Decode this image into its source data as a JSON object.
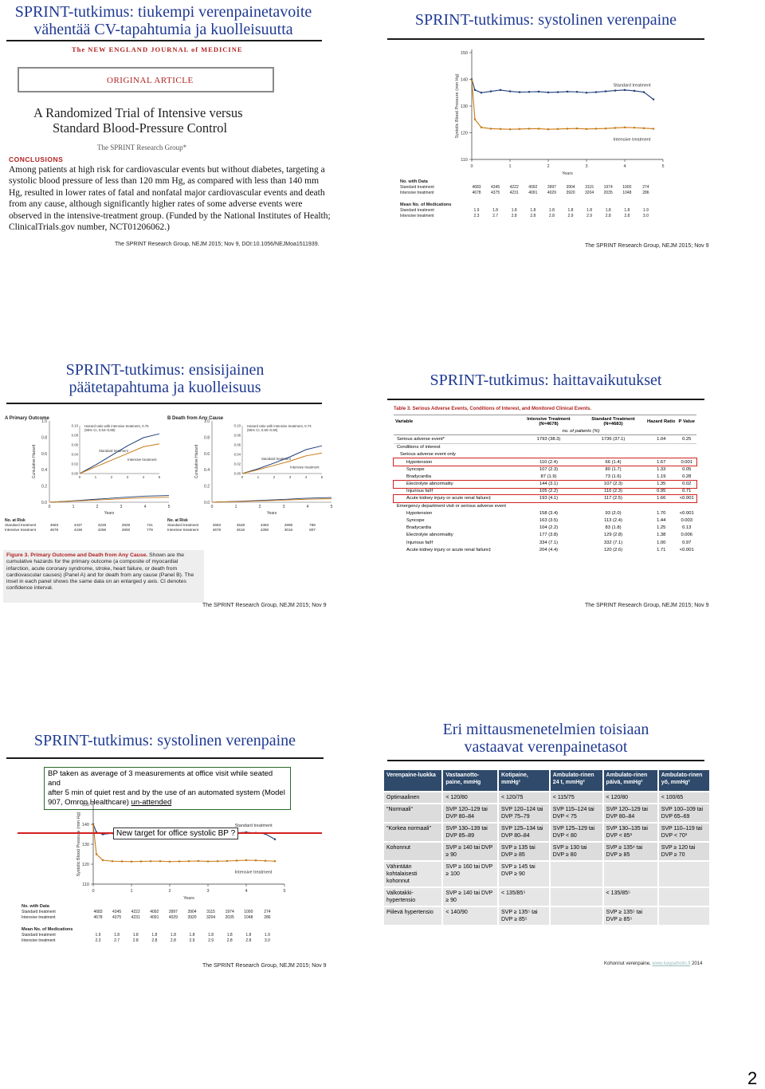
{
  "slide1": {
    "title_line1": "SPRINT-tutkimus: tiukempi verenpainetavoite",
    "title_line2": "vähentää CV-tapahtumia ja kuolleisuutta",
    "journal": "The NEW ENGLAND JOURNAL of MEDICINE",
    "article_type": "ORIGINAL ARTICLE",
    "article_title_line1": "A Randomized Trial of Intensive versus",
    "article_title_line2": "Standard Blood-Pressure Control",
    "authors": "The SPRINT Research Group*",
    "conclusions_heading": "CONCLUSIONS",
    "conclusions_text": "Among patients at high risk for cardiovascular events but without diabetes, targeting a systolic blood pressure of less than 120 mm Hg, as compared with less than 140 mm Hg, resulted in lower rates of fatal and nonfatal major cardiovascular events and death from any cause, although significantly higher rates of some adverse events were observed in the intensive-treatment group. (Funded by the National Institutes of Health; ClinicalTrials.gov number, NCT01206062.)",
    "citation": "The SPRINT Research Group, NEJM 2015; Nov 9, DOI:10.1056/NEJMoa1511939."
  },
  "slide2": {
    "title": "SPRINT-tutkimus: systolinen verenpaine",
    "citation": "The SPRINT Research Group, NEJM 2015; Nov 9"
  },
  "slide3": {
    "title_line1": "SPRINT-tutkimus: ensisijainen",
    "title_line2": "päätetapahtuma ja kuolleisuus",
    "panel_a": "A  Primary Outcome",
    "panel_b": "B  Death from Any Cause",
    "hr_a": "Hazard ratio with intensive treatment, 0.75 (95% CI, 0.64–0.89)",
    "hr_b": "Hazard ratio with intensive treatment, 0.73 (95% CI, 0.60–0.90)",
    "ylabel": "Cumulative Hazard",
    "xlabel": "Years",
    "standard": "Standard treatment",
    "intensive": "Intensive treatment",
    "at_risk": "No. at Risk",
    "risk_a_standard": [
      "4683",
      "4437",
      "4228",
      "2829",
      "721"
    ],
    "risk_a_intensive": [
      "4678",
      "4436",
      "4256",
      "2900",
      "779"
    ],
    "risk_b_standard": [
      "4683",
      "4528",
      "4383",
      "2998",
      "789"
    ],
    "risk_b_intensive": [
      "4678",
      "4516",
      "4390",
      "3016",
      "807"
    ],
    "figure_caption_bold": "Figure 3. Primary Outcome and Death from Any Cause.",
    "figure_caption": "Shown are the cumulative hazards for the primary outcome (a composite of myocardial infarction, acute coronary syndrome, stroke, heart failure, or death from cardiovascular causes) (Panel A) and for death from any cause (Panel B). The inset in each panel shows the same data on an enlarged y axis. CI denotes confidence interval.",
    "citation": "The SPRINT Research Group, NEJM 2015; Nov 9"
  },
  "slide4": {
    "title": "SPRINT-tutkimus: haittavaikutukset",
    "table_title": "Table 3. Serious Adverse Events, Conditions of Interest, and Monitored Clinical Events.",
    "col_variable": "Variable",
    "col_intensive": "Intensive Treatment (N=4678)",
    "col_standard": "Standard Treatment (N=4683)",
    "col_hr": "Hazard Ratio",
    "col_p": "P Value",
    "subheader": "no. of patients (%)",
    "rows": [
      {
        "v": "Serious adverse event*",
        "i": "1793 (38.3)",
        "s": "1736 (37.1)",
        "hr": "1.04",
        "p": "0.25"
      },
      {
        "v": "Conditions of interest",
        "i": "",
        "s": "",
        "hr": "",
        "p": ""
      },
      {
        "v": "Serious adverse event only",
        "i": "",
        "s": "",
        "hr": "",
        "p": ""
      },
      {
        "v": "Hypotension",
        "i": "110 (2.4)",
        "s": "66 (1.4)",
        "hr": "1.67",
        "p": "0.001"
      },
      {
        "v": "Syncope",
        "i": "107 (2.3)",
        "s": "80 (1.7)",
        "hr": "1.33",
        "p": "0.05"
      },
      {
        "v": "Bradycardia",
        "i": "87 (1.9)",
        "s": "73 (1.6)",
        "hr": "1.19",
        "p": "0.28"
      },
      {
        "v": "Electrolyte abnormality",
        "i": "144 (3.1)",
        "s": "107 (2.3)",
        "hr": "1.35",
        "p": "0.02"
      },
      {
        "v": "Injurious fall†",
        "i": "105 (2.2)",
        "s": "110 (2.3)",
        "hr": "0.95",
        "p": "0.71"
      },
      {
        "v": "Acute kidney injury or acute renal failure‡",
        "i": "193 (4.1)",
        "s": "117 (2.5)",
        "hr": "1.66",
        "p": "<0.001"
      },
      {
        "v": "Emergency department visit or serious adverse event",
        "i": "",
        "s": "",
        "hr": "",
        "p": ""
      },
      {
        "v": "Hypotension",
        "i": "158 (3.4)",
        "s": "93 (2.0)",
        "hr": "1.70",
        "p": "<0.001"
      },
      {
        "v": "Syncope",
        "i": "163 (3.5)",
        "s": "113 (2.4)",
        "hr": "1.44",
        "p": "0.003"
      },
      {
        "v": "Bradycardia",
        "i": "104 (2.2)",
        "s": "83 (1.8)",
        "hr": "1.25",
        "p": "0.13"
      },
      {
        "v": "Electrolyte abnormality",
        "i": "177 (3.8)",
        "s": "129 (2.8)",
        "hr": "1.38",
        "p": "0.006"
      },
      {
        "v": "Injurious fall†",
        "i": "334 (7.1)",
        "s": "332 (7.1)",
        "hr": "1.00",
        "p": "0.97"
      },
      {
        "v": "Acute kidney injury or acute renal failure‡",
        "i": "204 (4.4)",
        "s": "120 (2.6)",
        "hr": "1.71",
        "p": "<0.001"
      }
    ],
    "citation": "The SPRINT Research Group, NEJM 2015; Nov 9"
  },
  "slide5": {
    "title": "SPRINT-tutkimus: systolinen verenpaine",
    "note_line1": "BP taken as average of 3 measurements at office visit while seated and",
    "note_line2": "after 5 min of quiet rest and by the use of an automated system (Model",
    "note_line3_a": "907, Omron Healthcare) ",
    "note_line3_b": "un-attended",
    "target_label": "New target for office systolic BP ?",
    "citation": "The SPRINT Research Group, NEJM 2015; Nov 9"
  },
  "bp_chart": {
    "ylabel": "Systolic Blood Pressure (mm Hg)",
    "xlabel": "Years",
    "standard_label": "Standard treatment",
    "intensive_label": "Intensive treatment",
    "no_with_data": "No. with Data",
    "mean_meds": "Mean No. of Medications",
    "row_standard": "Standard treatment",
    "row_intensive": "Intensive treatment",
    "n_standard": [
      "4683",
      "4345",
      "4222",
      "4092",
      "3997",
      "3904",
      "3115",
      "1974",
      "1000",
      "274"
    ],
    "n_intensive": [
      "4678",
      "4375",
      "4231",
      "4091",
      "4029",
      "3920",
      "3204",
      "2035",
      "1048",
      "286"
    ],
    "meds_standard": [
      "1.9",
      "1.8",
      "1.8",
      "1.8",
      "1.8",
      "1.8",
      "1.8",
      "1.8",
      "1.8",
      "1.9"
    ],
    "meds_intensive": [
      "2.3",
      "2.7",
      "2.8",
      "2.8",
      "2.8",
      "2.9",
      "2.9",
      "2.8",
      "2.8",
      "3.0"
    ]
  },
  "chart_data": [
    {
      "type": "line",
      "xlabel": "Years",
      "ylabel": "Systolic Blood Pressure (mm Hg)",
      "ylim": [
        110,
        150
      ],
      "xlim": [
        0,
        5
      ],
      "yticks": [
        110,
        120,
        130,
        140,
        150
      ],
      "xticks": [
        0,
        1,
        2,
        3,
        4,
        5
      ],
      "series": [
        {
          "name": "Standard treatment",
          "x": [
            0,
            0.083,
            0.25,
            0.5,
            0.75,
            1,
            1.25,
            1.5,
            1.75,
            2,
            2.25,
            2.5,
            2.75,
            3,
            3.25,
            3.5,
            3.75,
            4,
            4.25,
            4.5,
            4.75
          ],
          "values": [
            140,
            136,
            135,
            135.5,
            136,
            135.5,
            135.2,
            135.3,
            135.4,
            135.1,
            135.2,
            135.4,
            135.3,
            135,
            135.2,
            135.5,
            135.8,
            136,
            135.7,
            135.2,
            132.5
          ]
        },
        {
          "name": "Intensive treatment",
          "x": [
            0,
            0.083,
            0.25,
            0.5,
            0.75,
            1,
            1.25,
            1.5,
            1.75,
            2,
            2.25,
            2.5,
            2.75,
            3,
            3.25,
            3.5,
            3.75,
            4,
            4.25,
            4.5,
            4.75
          ],
          "values": [
            139.7,
            125,
            122,
            121.5,
            121.4,
            121.3,
            121.4,
            121.5,
            121.5,
            121.3,
            121.4,
            121.5,
            121.6,
            121.4,
            121.5,
            121.6,
            121.8,
            122,
            121.9,
            121.7,
            121.5
          ]
        }
      ]
    },
    {
      "type": "line",
      "title": "Primary Outcome",
      "xlabel": "Years",
      "ylabel": "Cumulative Hazard",
      "ylim": [
        0,
        0.1
      ],
      "xlim": [
        0,
        5
      ],
      "series": [
        {
          "name": "Standard treatment",
          "x": [
            0,
            1,
            2,
            3,
            4,
            5
          ],
          "values": [
            0,
            0.018,
            0.038,
            0.058,
            0.075,
            0.083
          ]
        },
        {
          "name": "Intensive treatment",
          "x": [
            0,
            1,
            2,
            3,
            4,
            5
          ],
          "values": [
            0,
            0.014,
            0.028,
            0.042,
            0.056,
            0.062
          ]
        }
      ]
    },
    {
      "type": "line",
      "title": "Death from Any Cause",
      "xlabel": "Years",
      "ylabel": "Cumulative Hazard",
      "ylim": [
        0,
        0.1
      ],
      "xlim": [
        0,
        5
      ],
      "series": [
        {
          "name": "Standard treatment",
          "x": [
            0,
            1,
            2,
            3,
            4,
            5
          ],
          "values": [
            0,
            0.01,
            0.022,
            0.035,
            0.05,
            0.058
          ]
        },
        {
          "name": "Intensive treatment",
          "x": [
            0,
            1,
            2,
            3,
            4,
            5
          ],
          "values": [
            0,
            0.008,
            0.017,
            0.026,
            0.037,
            0.043
          ]
        }
      ]
    }
  ],
  "slide6": {
    "title_line1": "Eri mittausmenetelmien toisiaan",
    "title_line2": "vastaavat verenpainetasot",
    "header": [
      "Verenpaine-luokka",
      "Vastaanotto-paine, mmHg",
      "Kotipaine, mmHg¹",
      "Ambulato-rinen 24 t, mmHg²",
      "Ambulato-rinen päivä, mmHg²",
      "Ambulato-rinen yö, mmHg²"
    ],
    "rows": [
      [
        "Optimaalinen",
        "< 120/80",
        "< 120/75",
        "< 115/75",
        "< 120/80",
        "< 100/65"
      ],
      [
        "\"Normaali\"",
        "SVP 120–129 tai DVP 80–84",
        "SVP 120–124 tai DVP 75–79",
        "SVP 115–124 tai DVP < 75",
        "SVP 120–129 tai DVP 80–84",
        "SVP 100–109 tai DVP 65–69"
      ],
      [
        "\"Korkea normaali\"",
        "SVP 130–139 tai DVP 85–89",
        "SVP 125–134 tai DVP 80–84",
        "SVP 125–129 tai DVP < 80",
        "SVP 130–135 tai DVP < 85³",
        "SVP 110–119 tai DVP < 70³"
      ],
      [
        "Kohonnut",
        "SVP ≥ 140 tai DVP ≥ 90",
        "SVP ≥ 135 tai DVP ≥ 85",
        "SVP ≥ 130 tai DVP ≥ 80",
        "SVP ≥ 135⁴ tai DVP ≥ 85",
        "SVP ≥ 120 tai DVP ≥ 70"
      ],
      [
        "Vähintään kohtalaisesti kohonnut",
        "SVP ≥ 160 tai DVP ≥ 100",
        "SVP ≥ 145 tai DVP ≥ 90",
        "",
        "",
        ""
      ],
      [
        "Valkotakki-hypertensio",
        "SVP ≥ 140 tai DVP ≥ 90",
        "< 135/85⁵",
        "",
        "< 135/85⁵",
        ""
      ],
      [
        "Piilevä hypertensio",
        "< 140/90",
        "SVP ≥ 135⁵ tai DVP ≥ 85⁵",
        "",
        "SVP ≥ 135⁵ tai DVP ≥ 85⁵",
        ""
      ]
    ],
    "citation_a": "Kohonnut verenpaine, ",
    "citation_link": "www.kaypahoito.fi",
    "citation_b": " 2014"
  },
  "page_number": "2"
}
